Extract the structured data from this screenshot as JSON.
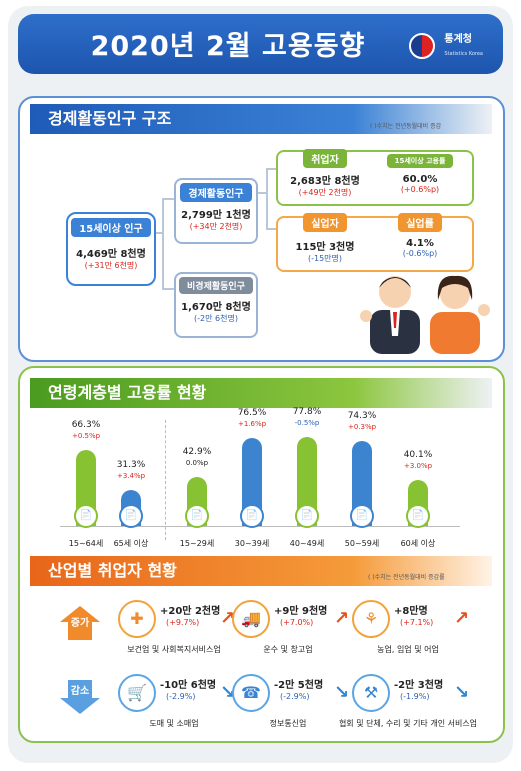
{
  "header": {
    "title": "2020년  2월 고용동향",
    "logo_kr": "통계청",
    "logo_en": "Statistics Korea"
  },
  "structure": {
    "section_title": "경제활동인구 구조",
    "note": "(  )수치는 전년동월대비 증감",
    "pop15": {
      "label": "15세이상 인구",
      "value": "4,469만 8천명",
      "change": "(+31만 6천명)"
    },
    "active": {
      "label": "경제활동인구",
      "value": "2,799만 1천명",
      "change": "(+34만 2천명)"
    },
    "inactive": {
      "label": "비경제활동인구",
      "value": "1,670만 8천명",
      "change": "(-2만 6천명)"
    },
    "employed": {
      "label": "취업자",
      "value": "2,683만 8천명",
      "change": "(+49만 2천명)"
    },
    "emp_rate": {
      "label": "15세이상 고용률",
      "value": "60.0%",
      "change": "(+0.6%p)"
    },
    "unemployed": {
      "label": "실업자",
      "value": "115만 3천명",
      "change": "(-15만명)"
    },
    "unemp_rate": {
      "label": "실업률",
      "value": "4.1%",
      "change": "(-0.6%p)"
    }
  },
  "age": {
    "section_title": "연령계층별 고용률 현황",
    "bars": [
      {
        "age": "15~64세",
        "pct": "66.3%",
        "chg": "+0.5%p",
        "value": 66.3,
        "color": "green",
        "chg_color": "red"
      },
      {
        "age": "65세 이상",
        "pct": "31.3%",
        "chg": "+3.4%p",
        "value": 31.3,
        "color": "blue",
        "chg_color": "red"
      },
      {
        "age": "15~29세",
        "pct": "42.9%",
        "chg": "0.0%p",
        "value": 42.9,
        "color": "green",
        "chg_color": "black"
      },
      {
        "age": "30~39세",
        "pct": "76.5%",
        "chg": "+1.6%p",
        "value": 76.5,
        "color": "blue",
        "chg_color": "red"
      },
      {
        "age": "40~49세",
        "pct": "77.8%",
        "chg": "-0.5%p",
        "value": 77.8,
        "color": "green",
        "chg_color": "blue"
      },
      {
        "age": "50~59세",
        "pct": "74.3%",
        "chg": "+0.3%p",
        "value": 74.3,
        "color": "blue",
        "chg_color": "red"
      },
      {
        "age": "60세 이상",
        "pct": "40.1%",
        "chg": "+3.0%p",
        "value": 40.1,
        "color": "green",
        "chg_color": "red"
      }
    ]
  },
  "industry": {
    "section_title": "산업별 취업자 현황",
    "note": "(  )수치는 전년동월대비 증감률",
    "increase_label": "증가",
    "decrease_label": "감소",
    "increase": [
      {
        "name": "보건업 및 사회복지서비스업",
        "value": "+20만 2천명",
        "rate": "(+9.7%)",
        "icon": "first-aid-icon"
      },
      {
        "name": "운수 및 창고업",
        "value": "+9만 9천명",
        "rate": "(+7.0%)",
        "icon": "truck-icon"
      },
      {
        "name": "농업, 임업 및 어업",
        "value": "+8만명",
        "rate": "(+7.1%)",
        "icon": "wheat-icon"
      }
    ],
    "decrease": [
      {
        "name": "도매 및 소매업",
        "value": "-10만 6천명",
        "rate": "(-2.9%)",
        "icon": "cart-icon"
      },
      {
        "name": "정보통신업",
        "value": "-2만 5천명",
        "rate": "(-2.9%)",
        "icon": "phone-icon"
      },
      {
        "name": "협회 및 단체, 수리 및 기타 개인 서비스업",
        "value": "-2만 3천명",
        "rate": "(-1.9%)",
        "icon": "tools-icon"
      }
    ]
  }
}
